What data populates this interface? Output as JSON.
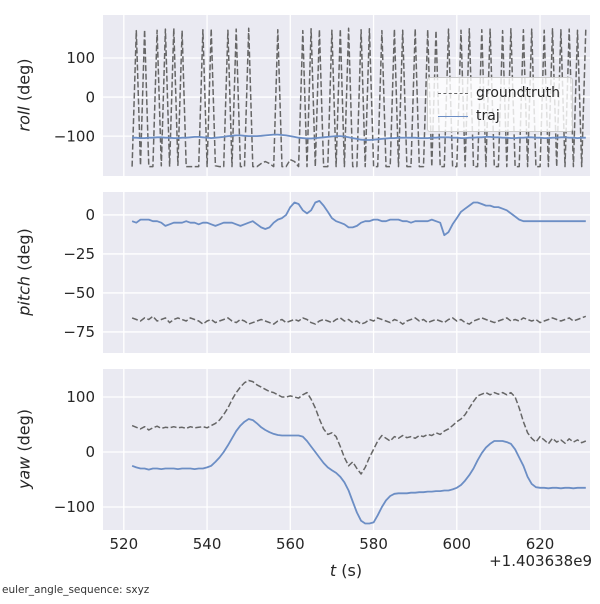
{
  "figure": {
    "background": "#ffffff",
    "axes_background": "#eaeaf2",
    "grid_color": "#ffffff",
    "tick_label_color": "#262626",
    "xlabel_var": "t",
    "xlabel_unit": "(s)",
    "x_offset_label": "+1.403638e9",
    "footer": "euler_angle_sequence: sxyz",
    "xlim": [
      515,
      632
    ],
    "xticks": [
      {
        "v": 520,
        "label": "520"
      },
      {
        "v": 540,
        "label": "540"
      },
      {
        "v": 560,
        "label": "560"
      },
      {
        "v": 580,
        "label": "580"
      },
      {
        "v": 600,
        "label": "600"
      },
      {
        "v": 620,
        "label": "620"
      }
    ],
    "legend": {
      "entries": [
        "groundtruth",
        "traj"
      ]
    }
  },
  "chart_data": [
    {
      "type": "line",
      "name": "roll",
      "ylabel_var": "roll",
      "ylabel_unit": "(deg)",
      "ylim": [
        -202,
        210
      ],
      "yticks": [
        {
          "v": 100,
          "label": "100"
        },
        {
          "v": 0,
          "label": "0"
        },
        {
          "v": -100,
          "label": "−100"
        }
      ],
      "series": [
        {
          "name": "groundtruth",
          "color": "#666666",
          "style": "dashed",
          "t0": 522,
          "dt": 1,
          "values": [
            -178,
            170,
            -175,
            172,
            -178,
            -178,
            171,
            -176,
            174,
            -178,
            176,
            -175,
            170,
            -178,
            -178,
            -178,
            -178,
            172,
            -178,
            175,
            -176,
            -178,
            -178,
            171,
            -178,
            174,
            -178,
            -178,
            176,
            -178,
            -178,
            -170,
            -165,
            -170,
            -178,
            172,
            -178,
            -178,
            -160,
            -165,
            -178,
            170,
            -178,
            175,
            -178,
            173,
            -178,
            -178,
            171,
            -178,
            174,
            -178,
            176,
            -178,
            -178,
            172,
            -178,
            175,
            -178,
            -178,
            170,
            -178,
            -178,
            174,
            -178,
            171,
            -178,
            -178,
            175,
            -178,
            -178,
            172,
            -178,
            170,
            -178,
            -178,
            174,
            -178,
            -178,
            171,
            -178,
            175,
            -178,
            -178,
            172,
            -178,
            174,
            -178,
            -178,
            170,
            -178,
            175,
            -178,
            -178,
            172,
            -178,
            174,
            -178,
            -178,
            171,
            -178,
            175,
            -178,
            172,
            -178,
            174,
            -178,
            171,
            -178,
            175
          ]
        },
        {
          "name": "traj",
          "color": "#6c8ec5",
          "style": "solid",
          "t0": 522,
          "dt": 1,
          "values": [
            -104,
            -104,
            -105,
            -105,
            -104,
            -104,
            -103,
            -103,
            -104,
            -104,
            -105,
            -105,
            -104,
            -104,
            -103,
            -102,
            -102,
            -103,
            -104,
            -105,
            -104,
            -103,
            -102,
            -100,
            -99,
            -98,
            -98,
            -99,
            -100,
            -100,
            -100,
            -99,
            -98,
            -97,
            -96,
            -96,
            -97,
            -98,
            -100,
            -102,
            -104,
            -105,
            -106,
            -106,
            -105,
            -104,
            -103,
            -102,
            -101,
            -100,
            -100,
            -101,
            -103,
            -105,
            -107,
            -109,
            -110,
            -110,
            -109,
            -108,
            -107,
            -106,
            -105,
            -105,
            -104,
            -104,
            -104,
            -104,
            -104,
            -105,
            -105,
            -105,
            -104,
            -104,
            -103,
            -103,
            -103,
            -104,
            -104,
            -105,
            -105,
            -104,
            -104,
            -103,
            -103,
            -102,
            -102,
            -103,
            -103,
            -104,
            -104,
            -105,
            -105,
            -104,
            -104,
            -103,
            -103,
            -104,
            -104,
            -105,
            -105,
            -104,
            -104,
            -103,
            -103,
            -104,
            -104,
            -105,
            -104,
            -104
          ]
        }
      ]
    },
    {
      "type": "line",
      "name": "pitch",
      "ylabel_var": "pitch",
      "ylabel_unit": "(deg)",
      "ylim": [
        -88.5,
        14.7
      ],
      "yticks": [
        {
          "v": 0,
          "label": "0"
        },
        {
          "v": -25,
          "label": "−25"
        },
        {
          "v": -50,
          "label": "−50"
        },
        {
          "v": -75,
          "label": "−75"
        }
      ],
      "series": [
        {
          "name": "groundtruth",
          "color": "#666666",
          "style": "dashed",
          "t0": 522,
          "dt": 1,
          "values": [
            -66,
            -67,
            -68,
            -66,
            -67,
            -65,
            -68,
            -67,
            -66,
            -69,
            -67,
            -66,
            -67,
            -68,
            -66,
            -67,
            -68,
            -70,
            -68,
            -67,
            -69,
            -68,
            -67,
            -66,
            -68,
            -69,
            -67,
            -68,
            -70,
            -69,
            -68,
            -67,
            -68,
            -69,
            -70,
            -68,
            -67,
            -69,
            -68,
            -67,
            -68,
            -66,
            -67,
            -69,
            -70,
            -68,
            -67,
            -68,
            -69,
            -67,
            -66,
            -68,
            -67,
            -69,
            -68,
            -70,
            -69,
            -67,
            -68,
            -66,
            -67,
            -68,
            -69,
            -67,
            -68,
            -70,
            -68,
            -67,
            -66,
            -68,
            -67,
            -69,
            -68,
            -67,
            -68,
            -69,
            -67,
            -66,
            -68,
            -67,
            -69,
            -70,
            -68,
            -67,
            -66,
            -67,
            -68,
            -69,
            -68,
            -67,
            -66,
            -68,
            -67,
            -68,
            -66,
            -67,
            -68,
            -67,
            -69,
            -68,
            -67,
            -66,
            -67,
            -68,
            -67,
            -66,
            -68,
            -67,
            -66,
            -65
          ]
        },
        {
          "name": "traj",
          "color": "#6c8ec5",
          "style": "solid",
          "t0": 522,
          "dt": 1,
          "values": [
            -4,
            -5,
            -3,
            -3,
            -3,
            -4,
            -4,
            -5,
            -7,
            -6,
            -5,
            -5,
            -5,
            -4,
            -5,
            -5,
            -6,
            -5,
            -5,
            -6,
            -7,
            -6,
            -5,
            -5,
            -5,
            -6,
            -7,
            -6,
            -5,
            -4,
            -6,
            -8,
            -9,
            -8,
            -5,
            -3,
            -2,
            0,
            5,
            8,
            7,
            3,
            1,
            3,
            8,
            9,
            6,
            2,
            -2,
            -4,
            -5,
            -6,
            -8,
            -8,
            -7,
            -5,
            -4,
            -4,
            -3,
            -3,
            -4,
            -4,
            -3,
            -3,
            -3,
            -4,
            -4,
            -5,
            -4,
            -4,
            -4,
            -4,
            -3,
            -4,
            -5,
            -13,
            -11,
            -6,
            -2,
            2,
            4,
            6,
            8,
            8,
            7,
            6,
            6,
            5,
            5,
            4,
            3,
            1,
            -1,
            -3,
            -4,
            -4,
            -4,
            -4,
            -4,
            -4,
            -4,
            -4,
            -4,
            -4,
            -4,
            -4,
            -4,
            -4,
            -4,
            -4
          ]
        }
      ]
    },
    {
      "type": "line",
      "name": "yaw",
      "ylabel_var": "yaw",
      "ylabel_unit": "(deg)",
      "ylim": [
        -141.8,
        150.9
      ],
      "yticks": [
        {
          "v": 100,
          "label": "100"
        },
        {
          "v": 0,
          "label": "0"
        },
        {
          "v": -100,
          "label": "−100"
        }
      ],
      "series": [
        {
          "name": "groundtruth",
          "color": "#666666",
          "style": "dashed",
          "t0": 522,
          "dt": 1,
          "values": [
            48,
            45,
            42,
            46,
            40,
            44,
            47,
            43,
            45,
            44,
            46,
            44,
            45,
            43,
            46,
            44,
            45,
            46,
            44,
            48,
            52,
            58,
            68,
            80,
            95,
            108,
            118,
            126,
            130,
            128,
            122,
            118,
            114,
            110,
            108,
            104,
            100,
            100,
            102,
            100,
            98,
            104,
            108,
            96,
            80,
            60,
            42,
            32,
            35,
            28,
            10,
            -10,
            -25,
            -18,
            -30,
            -40,
            -28,
            -10,
            5,
            20,
            30,
            25,
            20,
            28,
            25,
            30,
            26,
            28,
            25,
            30,
            28,
            32,
            30,
            35,
            32,
            38,
            42,
            48,
            55,
            60,
            68,
            80,
            92,
            102,
            105,
            108,
            104,
            108,
            105,
            108,
            104,
            108,
            100,
            80,
            55,
            35,
            25,
            18,
            28,
            22,
            15,
            25,
            18,
            22,
            16,
            24,
            18,
            22,
            17,
            20
          ]
        },
        {
          "name": "traj",
          "color": "#6c8ec5",
          "style": "solid",
          "t0": 522,
          "dt": 1,
          "values": [
            -25,
            -28,
            -30,
            -30,
            -32,
            -30,
            -30,
            -31,
            -30,
            -30,
            -30,
            -31,
            -30,
            -30,
            -30,
            -31,
            -30,
            -30,
            -28,
            -25,
            -18,
            -10,
            0,
            12,
            25,
            38,
            48,
            55,
            60,
            58,
            52,
            45,
            40,
            36,
            33,
            31,
            30,
            30,
            30,
            30,
            30,
            28,
            20,
            10,
            0,
            -10,
            -20,
            -28,
            -33,
            -38,
            -45,
            -55,
            -70,
            -90,
            -110,
            -125,
            -130,
            -130,
            -128,
            -115,
            -100,
            -88,
            -80,
            -76,
            -75,
            -75,
            -75,
            -74,
            -74,
            -73,
            -73,
            -72,
            -72,
            -71,
            -71,
            -70,
            -70,
            -68,
            -65,
            -60,
            -52,
            -42,
            -30,
            -15,
            -2,
            8,
            15,
            20,
            20,
            20,
            18,
            15,
            5,
            -10,
            -25,
            -45,
            -58,
            -64,
            -65,
            -65,
            -66,
            -65,
            -65,
            -66,
            -65,
            -65,
            -66,
            -65,
            -65,
            -65
          ]
        }
      ]
    }
  ]
}
